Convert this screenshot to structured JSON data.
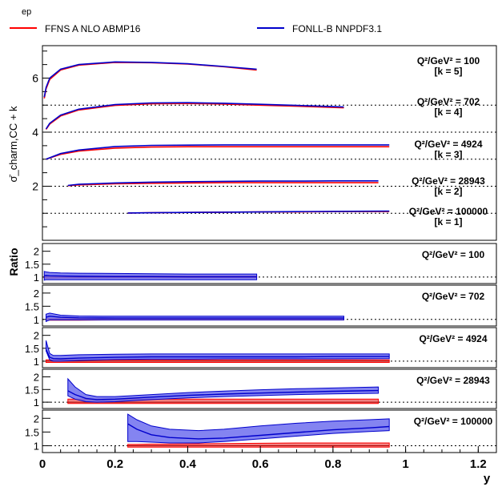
{
  "header": {
    "label": "ep"
  },
  "legend": [
    {
      "label": "FFNS A NLO ABMP16",
      "color": "#ff0000"
    },
    {
      "label": "FONLL-B NNPDF3.1",
      "color": "#0000cc"
    }
  ],
  "colors": {
    "band_blue": "#6f6fee",
    "band_red": "#f08080",
    "blue": "#0000cc",
    "red": "#ff0000"
  },
  "chart_data": {
    "type": "line",
    "top_panel": {
      "ylabel": "σ̄_charm,CC + k",
      "ylim": [
        0,
        7.2
      ],
      "yticks": [
        2,
        4,
        6
      ],
      "grid_lines": [
        1,
        2,
        3,
        4,
        5
      ],
      "series": [
        {
          "q2_label": "Q²/GeV² = 100",
          "k_label": "[k = 5]",
          "x": [
            0.005,
            0.01,
            0.02,
            0.05,
            0.1,
            0.2,
            0.3,
            0.4,
            0.5,
            0.59
          ],
          "red": [
            5.25,
            5.6,
            5.95,
            6.3,
            6.48,
            6.58,
            6.57,
            6.52,
            6.42,
            6.3
          ],
          "blue": [
            5.3,
            5.65,
            6.0,
            6.33,
            6.5,
            6.6,
            6.58,
            6.53,
            6.43,
            6.33
          ]
        },
        {
          "q2_label": "Q²/GeV² = 702",
          "k_label": "[k = 4]",
          "x": [
            0.01,
            0.02,
            0.05,
            0.1,
            0.2,
            0.3,
            0.4,
            0.5,
            0.6,
            0.7,
            0.83
          ],
          "red": [
            4.1,
            4.3,
            4.6,
            4.82,
            4.99,
            5.05,
            5.06,
            5.04,
            5.0,
            4.96,
            4.9
          ],
          "blue": [
            4.12,
            4.33,
            4.63,
            4.85,
            5.02,
            5.08,
            5.09,
            5.07,
            5.03,
            4.99,
            4.93
          ]
        },
        {
          "q2_label": "Q²/GeV² = 4924",
          "k_label": "[k = 3]",
          "x": [
            0.01,
            0.05,
            0.1,
            0.2,
            0.3,
            0.4,
            0.5,
            0.6,
            0.7,
            0.8,
            0.955
          ],
          "red": [
            3.0,
            3.18,
            3.3,
            3.41,
            3.45,
            3.46,
            3.46,
            3.46,
            3.46,
            3.46,
            3.46
          ],
          "blue": [
            3.0,
            3.21,
            3.34,
            3.47,
            3.51,
            3.52,
            3.53,
            3.53,
            3.53,
            3.53,
            3.53
          ]
        },
        {
          "q2_label": "Q²/GeV² = 28943",
          "k_label": "[k = 2]",
          "x": [
            0.07,
            0.1,
            0.2,
            0.3,
            0.4,
            0.5,
            0.6,
            0.7,
            0.8,
            0.925
          ],
          "red": [
            2.02,
            2.05,
            2.09,
            2.11,
            2.12,
            2.13,
            2.13,
            2.13,
            2.13,
            2.13
          ],
          "blue": [
            2.03,
            2.07,
            2.12,
            2.15,
            2.17,
            2.18,
            2.19,
            2.19,
            2.2,
            2.2
          ]
        },
        {
          "q2_label": "Q²/GeV² = 100000",
          "k_label": "[k = 1]",
          "x": [
            0.235,
            0.3,
            0.4,
            0.5,
            0.6,
            0.7,
            0.8,
            0.955
          ],
          "red": [
            1.01,
            1.02,
            1.03,
            1.04,
            1.05,
            1.05,
            1.06,
            1.06
          ],
          "blue": [
            1.01,
            1.02,
            1.03,
            1.04,
            1.05,
            1.06,
            1.07,
            1.08
          ]
        }
      ]
    },
    "ratio_panels": {
      "ylabel": "Ratio",
      "yticks": [
        1,
        1.5,
        2
      ],
      "ylim": [
        0.75,
        2.3
      ],
      "panels": [
        {
          "q2_label": "Q²/GeV² = 100",
          "x": [
            0.005,
            0.01,
            0.02,
            0.05,
            0.1,
            0.2,
            0.3,
            0.4,
            0.5,
            0.59
          ],
          "red_lo": [
            0.96,
            0.96,
            0.96,
            0.97,
            0.97,
            0.98,
            0.98,
            0.98,
            0.98,
            0.98
          ],
          "red_hi": [
            1.04,
            1.04,
            1.04,
            1.04,
            1.04,
            1.04,
            1.04,
            1.04,
            1.04,
            1.04
          ],
          "blue_central": [
            1.05,
            1.06,
            1.05,
            1.04,
            1.03,
            1.02,
            1.02,
            1.01,
            1.01,
            1.01
          ],
          "blue_lo": [
            0.88,
            0.9,
            0.9,
            0.9,
            0.9,
            0.9,
            0.9,
            0.9,
            0.9,
            0.9
          ],
          "blue_hi": [
            1.22,
            1.2,
            1.18,
            1.16,
            1.15,
            1.14,
            1.13,
            1.12,
            1.12,
            1.12
          ]
        },
        {
          "q2_label": "Q²/GeV² = 702",
          "x": [
            0.01,
            0.02,
            0.05,
            0.1,
            0.2,
            0.3,
            0.4,
            0.5,
            0.6,
            0.7,
            0.83
          ],
          "red_lo": [
            0.97,
            0.97,
            0.97,
            0.97,
            0.98,
            0.98,
            0.98,
            0.98,
            0.98,
            0.98,
            0.98
          ],
          "red_hi": [
            1.03,
            1.03,
            1.03,
            1.03,
            1.03,
            1.03,
            1.03,
            1.03,
            1.03,
            1.03,
            1.03
          ],
          "blue_central": [
            1.08,
            1.12,
            1.08,
            1.06,
            1.05,
            1.05,
            1.05,
            1.05,
            1.05,
            1.05,
            1.05
          ],
          "blue_lo": [
            0.92,
            0.98,
            0.98,
            0.98,
            0.98,
            0.98,
            0.98,
            0.98,
            0.98,
            0.98,
            0.98
          ],
          "blue_hi": [
            1.2,
            1.24,
            1.16,
            1.13,
            1.12,
            1.12,
            1.12,
            1.12,
            1.12,
            1.12,
            1.12
          ]
        },
        {
          "q2_label": "Q²/GeV² = 4924",
          "x": [
            0.01,
            0.02,
            0.03,
            0.05,
            0.1,
            0.2,
            0.3,
            0.4,
            0.5,
            0.6,
            0.7,
            0.8,
            0.955
          ],
          "red_lo": [
            0.95,
            0.95,
            0.95,
            0.95,
            0.95,
            0.95,
            0.95,
            0.95,
            0.95,
            0.95,
            0.95,
            0.95,
            0.95
          ],
          "red_hi": [
            1.05,
            1.05,
            1.05,
            1.05,
            1.05,
            1.05,
            1.05,
            1.05,
            1.05,
            1.05,
            1.05,
            1.05,
            1.05
          ],
          "blue_central": [
            1.45,
            1.15,
            1.1,
            1.09,
            1.12,
            1.15,
            1.17,
            1.17,
            1.17,
            1.17,
            1.17,
            1.18,
            1.18
          ],
          "blue_lo": [
            1.4,
            1.05,
            1.0,
            1.0,
            1.03,
            1.07,
            1.08,
            1.08,
            1.09,
            1.09,
            1.09,
            1.09,
            1.1
          ],
          "blue_hi": [
            1.8,
            1.3,
            1.22,
            1.22,
            1.25,
            1.27,
            1.28,
            1.28,
            1.28,
            1.28,
            1.28,
            1.28,
            1.28
          ]
        },
        {
          "q2_label": "Q²/GeV² = 28943",
          "x": [
            0.07,
            0.09,
            0.12,
            0.15,
            0.2,
            0.3,
            0.4,
            0.5,
            0.6,
            0.7,
            0.8,
            0.925
          ],
          "red_lo": [
            0.95,
            0.95,
            0.95,
            0.95,
            0.95,
            0.95,
            0.95,
            0.95,
            0.95,
            0.95,
            0.95,
            0.95
          ],
          "red_hi": [
            1.12,
            1.12,
            1.12,
            1.12,
            1.12,
            1.12,
            1.12,
            1.12,
            1.12,
            1.12,
            1.12,
            1.12
          ],
          "blue_central": [
            1.45,
            1.3,
            1.15,
            1.1,
            1.12,
            1.2,
            1.27,
            1.32,
            1.36,
            1.4,
            1.43,
            1.46
          ],
          "blue_lo": [
            1.25,
            1.12,
            1.02,
            1.0,
            1.02,
            1.1,
            1.17,
            1.22,
            1.26,
            1.3,
            1.33,
            1.35
          ],
          "blue_hi": [
            1.92,
            1.6,
            1.3,
            1.22,
            1.22,
            1.3,
            1.38,
            1.44,
            1.49,
            1.53,
            1.56,
            1.6
          ]
        },
        {
          "q2_label": "Q²/GeV² = 100000",
          "x": [
            0.235,
            0.26,
            0.3,
            0.35,
            0.43,
            0.5,
            0.6,
            0.7,
            0.8,
            0.9,
            0.955
          ],
          "red_lo": [
            0.95,
            0.95,
            0.95,
            0.95,
            0.95,
            0.95,
            0.95,
            0.95,
            0.95,
            0.95,
            0.95
          ],
          "red_hi": [
            1.05,
            1.05,
            1.06,
            1.06,
            1.07,
            1.08,
            1.09,
            1.1,
            1.1,
            1.1,
            1.1
          ],
          "blue_central": [
            1.8,
            1.6,
            1.4,
            1.3,
            1.25,
            1.28,
            1.38,
            1.48,
            1.58,
            1.65,
            1.7
          ],
          "blue_lo": [
            1.15,
            1.15,
            1.13,
            1.1,
            1.1,
            1.15,
            1.25,
            1.35,
            1.45,
            1.52,
            1.55
          ],
          "blue_hi": [
            2.15,
            1.95,
            1.72,
            1.6,
            1.55,
            1.6,
            1.72,
            1.82,
            1.9,
            1.95,
            1.98
          ]
        }
      ]
    },
    "x_axis": {
      "label": "y",
      "ticks": [
        0,
        0.2,
        0.4,
        0.6,
        0.8,
        1,
        1.2
      ],
      "xlim": [
        0,
        1.25
      ]
    }
  }
}
